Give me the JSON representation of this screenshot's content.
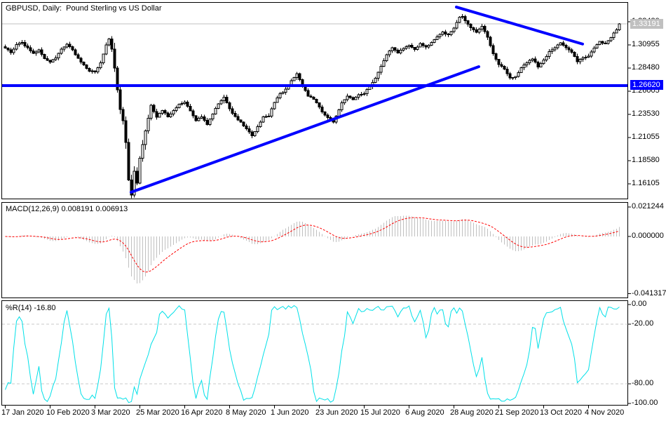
{
  "window": {
    "title": "GBPUSD, Daily:  Pound Sterling vs US Dollar"
  },
  "indicators": {
    "macd_label": "MACD(12,26,9) 0.008191 0.006913",
    "wpr_label": "%R(14) -16.80"
  },
  "price_axis": {
    "bid_tag": "1.33191",
    "hline_tag": "1.26620",
    "ticks": [
      "1.33430",
      "1.30955",
      "1.28480",
      "1.26005",
      "1.23530",
      "1.21055",
      "1.18580",
      "1.16105"
    ]
  },
  "macd_axis": {
    "ticks": [
      "0.021244",
      "0.000000",
      "-0.041317"
    ]
  },
  "wpr_axis": {
    "ticks": [
      "0.00",
      "-20.00",
      "-80.00",
      "-100.00"
    ]
  },
  "time_axis": {
    "ticks": [
      "17 Jan 2020",
      "10 Feb 2020",
      "3 Mar 2020",
      "25 Mar 2020",
      "16 Apr 2020",
      "8 May 2020",
      "1 Jun 2020",
      "23 Jun 2020",
      "15 Jul 2020",
      "6 Aug 2020",
      "28 Aug 2020",
      "21 Sep 2020",
      "13 Oct 2020",
      "4 Nov 2020"
    ]
  },
  "colors": {
    "bull": "#FFFFFF",
    "bear": "#000000",
    "outline": "#000000",
    "trendline": "#0000FF",
    "hline": "#0000FF",
    "bid_line": "#C0C0C0",
    "bid_tag_bg": "#C0C0C0",
    "hline_tag_bg": "#0000FF",
    "macd_hist": "#C0C0C0",
    "macd_signal": "#FF0000",
    "wpr_line": "#00E0E8",
    "grid_dash": "#C8C8C8",
    "border": "#000000",
    "text": "#000000"
  },
  "chart_data": {
    "type": "candlestick",
    "symbol": "GBPUSD",
    "timeframe": "Daily",
    "title": "GBPUSD, Daily: Pound Sterling vs US Dollar",
    "bars": 220,
    "current_bid": 1.33191,
    "horizontal_line_price": 1.2662,
    "price_axis_values": [
      1.3343,
      1.30955,
      1.2848,
      1.26005,
      1.2353,
      1.21055,
      1.1858,
      1.16105
    ],
    "close_anchors": [
      [
        0,
        1.3065
      ],
      [
        2,
        1.301
      ],
      [
        4,
        1.3095
      ],
      [
        6,
        1.312
      ],
      [
        8,
        1.306
      ],
      [
        10,
        1.3
      ],
      [
        12,
        1.3045
      ],
      [
        14,
        1.295
      ],
      [
        16,
        1.2915
      ],
      [
        18,
        1.296
      ],
      [
        20,
        1.3045
      ],
      [
        22,
        1.3105
      ],
      [
        24,
        1.304
      ],
      [
        26,
        1.295
      ],
      [
        28,
        1.288
      ],
      [
        30,
        1.282
      ],
      [
        32,
        1.281
      ],
      [
        34,
        1.29
      ],
      [
        36,
        1.31
      ],
      [
        37,
        1.316
      ],
      [
        38,
        1.305
      ],
      [
        39,
        1.285
      ],
      [
        40,
        1.262
      ],
      [
        41,
        1.24
      ],
      [
        42,
        1.228
      ],
      [
        43,
        1.205
      ],
      [
        44,
        1.165
      ],
      [
        45,
        1.149
      ],
      [
        46,
        1.175
      ],
      [
        47,
        1.162
      ],
      [
        48,
        1.188
      ],
      [
        50,
        1.218
      ],
      [
        52,
        1.245
      ],
      [
        54,
        1.232
      ],
      [
        56,
        1.24
      ],
      [
        58,
        1.233
      ],
      [
        60,
        1.239
      ],
      [
        62,
        1.246
      ],
      [
        64,
        1.248
      ],
      [
        66,
        1.239
      ],
      [
        68,
        1.229
      ],
      [
        70,
        1.233
      ],
      [
        72,
        1.225
      ],
      [
        74,
        1.236
      ],
      [
        76,
        1.246
      ],
      [
        78,
        1.254
      ],
      [
        80,
        1.241
      ],
      [
        82,
        1.233
      ],
      [
        84,
        1.227
      ],
      [
        86,
        1.22
      ],
      [
        88,
        1.212
      ],
      [
        90,
        1.222
      ],
      [
        92,
        1.232
      ],
      [
        94,
        1.234
      ],
      [
        96,
        1.248
      ],
      [
        98,
        1.257
      ],
      [
        100,
        1.262
      ],
      [
        102,
        1.271
      ],
      [
        104,
        1.279
      ],
      [
        106,
        1.266
      ],
      [
        108,
        1.255
      ],
      [
        110,
        1.252
      ],
      [
        112,
        1.243
      ],
      [
        114,
        1.234
      ],
      [
        116,
        1.229
      ],
      [
        117,
        1.227
      ],
      [
        120,
        1.247
      ],
      [
        122,
        1.255
      ],
      [
        124,
        1.251
      ],
      [
        126,
        1.256
      ],
      [
        128,
        1.258
      ],
      [
        130,
        1.265
      ],
      [
        132,
        1.274
      ],
      [
        134,
        1.287
      ],
      [
        136,
        1.299
      ],
      [
        138,
        1.307
      ],
      [
        140,
        1.301
      ],
      [
        142,
        1.306
      ],
      [
        144,
        1.309
      ],
      [
        146,
        1.304
      ],
      [
        148,
        1.311
      ],
      [
        150,
        1.307
      ],
      [
        152,
        1.312
      ],
      [
        154,
        1.318
      ],
      [
        156,
        1.323
      ],
      [
        158,
        1.32
      ],
      [
        160,
        1.328
      ],
      [
        162,
        1.339
      ],
      [
        163,
        1.34
      ],
      [
        164,
        1.335
      ],
      [
        166,
        1.328
      ],
      [
        168,
        1.323
      ],
      [
        170,
        1.329
      ],
      [
        172,
        1.318
      ],
      [
        174,
        1.3
      ],
      [
        176,
        1.288
      ],
      [
        178,
        1.284
      ],
      [
        180,
        1.274
      ],
      [
        182,
        1.276
      ],
      [
        184,
        1.285
      ],
      [
        186,
        1.291
      ],
      [
        188,
        1.295
      ],
      [
        190,
        1.286
      ],
      [
        192,
        1.293
      ],
      [
        194,
        1.302
      ],
      [
        196,
        1.306
      ],
      [
        198,
        1.312
      ],
      [
        200,
        1.306
      ],
      [
        202,
        1.302
      ],
      [
        204,
        1.292
      ],
      [
        206,
        1.296
      ],
      [
        208,
        1.298
      ],
      [
        210,
        1.306
      ],
      [
        212,
        1.313
      ],
      [
        214,
        1.311
      ],
      [
        216,
        1.318
      ],
      [
        218,
        1.326
      ],
      [
        219,
        1.33191
      ]
    ],
    "trendlines": [
      {
        "id": "ascending-support",
        "from": {
          "bar": 45,
          "price": 1.1521
        },
        "to": {
          "bar": 169,
          "price": 1.2863
        }
      },
      {
        "id": "descending-resistance",
        "from": {
          "bar": 161,
          "price": 1.35
        },
        "to": {
          "bar": 206,
          "price": 1.3105
        }
      }
    ],
    "x_tick_bars": [
      0,
      16,
      32,
      48,
      64,
      80,
      96,
      112,
      128,
      144,
      160,
      176,
      192,
      208
    ],
    "indicators": {
      "macd": {
        "type": "histogram+signal",
        "params": [
          12,
          26,
          9
        ],
        "last_main": 0.008191,
        "last_signal": 0.006913,
        "axis_range": [
          -0.041317,
          0.021244
        ]
      },
      "wpr": {
        "type": "line",
        "params": [
          14
        ],
        "last": -16.8,
        "axis_range": [
          -100,
          0
        ],
        "gridlines": [
          -20,
          -80
        ]
      }
    }
  }
}
